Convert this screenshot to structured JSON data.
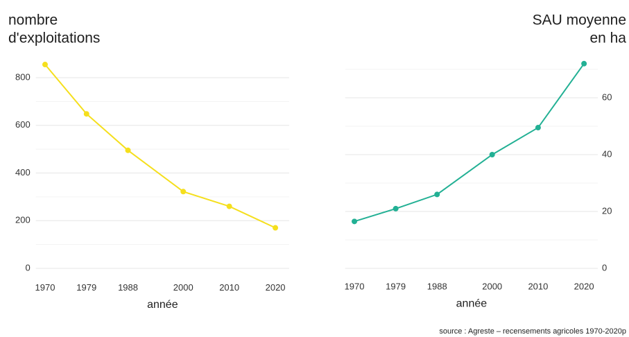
{
  "chart_data": [
    {
      "type": "line",
      "title": [
        "nombre",
        "d'exploitations"
      ],
      "x_label": "année",
      "x": [
        1970,
        1979,
        1988,
        2000,
        2010,
        2020
      ],
      "values": [
        855,
        648,
        495,
        322,
        260,
        170
      ],
      "color": "#f5df1d",
      "xlim": [
        1968,
        2023
      ],
      "xticks": [
        1970,
        1979,
        1988,
        2000,
        2010,
        2020
      ],
      "ylim": [
        -40,
        890
      ],
      "yticks": [
        0,
        200,
        400,
        600,
        800
      ],
      "minor_grid": [
        100,
        300,
        500,
        700
      ],
      "y_axis_side": "left",
      "grid": true
    },
    {
      "type": "line",
      "title": [
        "SAU moyenne",
        "en ha"
      ],
      "x_label": "année",
      "x": [
        1970,
        1979,
        1988,
        2000,
        2010,
        2020
      ],
      "values": [
        16.5,
        21,
        26,
        40,
        49.5,
        72
      ],
      "color": "#22b094",
      "xlim": [
        1968,
        2023
      ],
      "xticks": [
        1970,
        1979,
        1988,
        2000,
        2010,
        2020
      ],
      "ylim": [
        -3,
        75
      ],
      "yticks": [
        0,
        20,
        40,
        60
      ],
      "minor_grid": [
        10,
        30,
        50,
        70
      ],
      "y_axis_side": "right",
      "grid": true
    }
  ],
  "source": "source : Agreste – recensements agricoles 1970-2020p"
}
